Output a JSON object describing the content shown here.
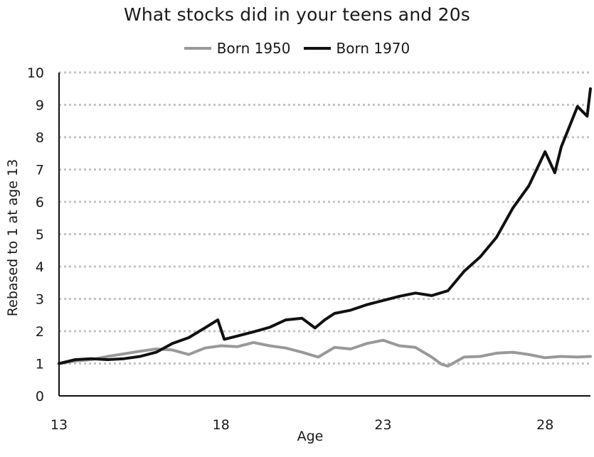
{
  "chart_data": {
    "type": "line",
    "title": "What stocks did in your teens and 20s",
    "xlabel": "Age",
    "ylabel": "Rebased to 1 at age 13",
    "xlim": [
      13,
      29.4
    ],
    "ylim": [
      0,
      10
    ],
    "xticks": [
      13,
      18,
      23,
      28
    ],
    "yticks": [
      0,
      1,
      2,
      3,
      4,
      5,
      6,
      7,
      8,
      9,
      10
    ],
    "grid": "horizontal dotted",
    "legend_position": "top",
    "series": [
      {
        "name": "Born 1950",
        "color": "#999999",
        "x": [
          13.0,
          13.5,
          14.0,
          14.5,
          15.0,
          15.5,
          16.0,
          16.5,
          17.0,
          17.5,
          18.0,
          18.5,
          19.0,
          19.5,
          20.0,
          20.5,
          21.0,
          21.5,
          22.0,
          22.5,
          23.0,
          23.5,
          24.0,
          24.5,
          24.8,
          25.0,
          25.5,
          26.0,
          26.5,
          27.0,
          27.5,
          28.0,
          28.5,
          29.0,
          29.4
        ],
        "y": [
          1.0,
          1.08,
          1.12,
          1.22,
          1.3,
          1.38,
          1.45,
          1.42,
          1.28,
          1.48,
          1.55,
          1.52,
          1.65,
          1.55,
          1.48,
          1.35,
          1.2,
          1.5,
          1.45,
          1.62,
          1.72,
          1.55,
          1.5,
          1.2,
          0.98,
          0.92,
          1.2,
          1.22,
          1.32,
          1.35,
          1.28,
          1.18,
          1.22,
          1.2,
          1.22
        ]
      },
      {
        "name": "Born 1970",
        "color": "#111111",
        "x": [
          13.0,
          13.5,
          14.0,
          14.5,
          15.0,
          15.5,
          16.0,
          16.5,
          17.0,
          17.5,
          17.9,
          18.1,
          18.5,
          19.0,
          19.5,
          20.0,
          20.5,
          20.9,
          21.2,
          21.5,
          22.0,
          22.5,
          23.0,
          23.5,
          24.0,
          24.5,
          25.0,
          25.5,
          26.0,
          26.5,
          27.0,
          27.5,
          28.0,
          28.3,
          28.5,
          28.8,
          29.0,
          29.3,
          29.4
        ],
        "y": [
          1.0,
          1.12,
          1.15,
          1.12,
          1.15,
          1.22,
          1.35,
          1.62,
          1.8,
          2.1,
          2.35,
          1.75,
          1.85,
          1.98,
          2.12,
          2.35,
          2.4,
          2.1,
          2.35,
          2.55,
          2.65,
          2.82,
          2.95,
          3.08,
          3.18,
          3.1,
          3.25,
          3.85,
          4.3,
          4.9,
          5.8,
          6.5,
          7.55,
          6.9,
          7.7,
          8.45,
          8.95,
          8.65,
          9.5
        ]
      }
    ]
  }
}
